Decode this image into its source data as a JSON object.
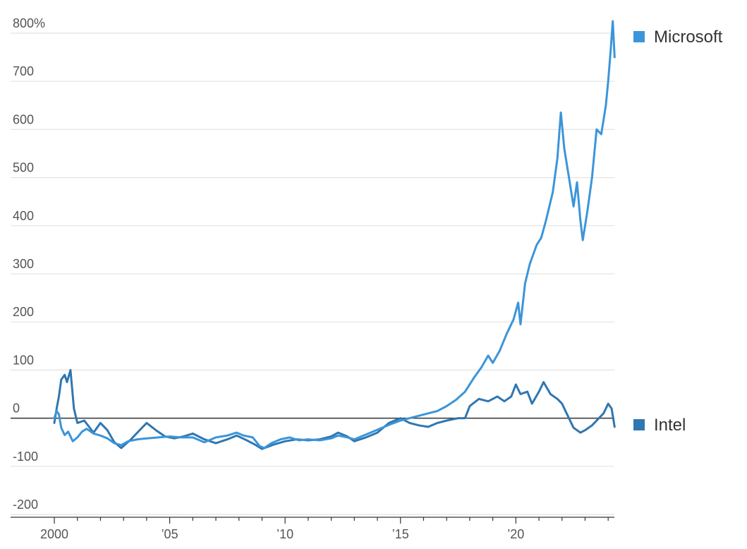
{
  "chart_data": {
    "type": "line",
    "title": "",
    "xlabel": "",
    "ylabel": "",
    "y_unit": "%",
    "ylim": [
      -200,
      800
    ],
    "xlim": [
      2000,
      2024.3
    ],
    "y_ticks": [
      {
        "value": 800,
        "label": "800%"
      },
      {
        "value": 700,
        "label": "700"
      },
      {
        "value": 600,
        "label": "600"
      },
      {
        "value": 500,
        "label": "500"
      },
      {
        "value": 400,
        "label": "400"
      },
      {
        "value": 300,
        "label": "300"
      },
      {
        "value": 200,
        "label": "200"
      },
      {
        "value": 100,
        "label": "100"
      },
      {
        "value": 0,
        "label": "0"
      },
      {
        "value": -100,
        "label": "-100"
      },
      {
        "value": -200,
        "label": "-200"
      }
    ],
    "x_ticks": [
      {
        "value": 2000,
        "label": "2000"
      },
      {
        "value": 2005,
        "label": "’05"
      },
      {
        "value": 2010,
        "label": "’10"
      },
      {
        "value": 2015,
        "label": "’15"
      },
      {
        "value": 2020,
        "label": "’20"
      }
    ],
    "grid": true,
    "zero_line": true,
    "legend_placement": "right, at line ends",
    "series": [
      {
        "name": "Microsoft",
        "color": "#3b95d9",
        "points": [
          [
            2000.0,
            0
          ],
          [
            2000.1,
            15
          ],
          [
            2000.2,
            8
          ],
          [
            2000.3,
            -20
          ],
          [
            2000.45,
            -35
          ],
          [
            2000.6,
            -28
          ],
          [
            2000.8,
            -48
          ],
          [
            2001.0,
            -40
          ],
          [
            2001.2,
            -28
          ],
          [
            2001.4,
            -22
          ],
          [
            2001.7,
            -32
          ],
          [
            2002.0,
            -36
          ],
          [
            2002.3,
            -42
          ],
          [
            2002.6,
            -52
          ],
          [
            2002.9,
            -56
          ],
          [
            2003.2,
            -48
          ],
          [
            2003.6,
            -44
          ],
          [
            2004.0,
            -42
          ],
          [
            2004.5,
            -40
          ],
          [
            2005.0,
            -38
          ],
          [
            2005.5,
            -40
          ],
          [
            2006.0,
            -40
          ],
          [
            2006.5,
            -50
          ],
          [
            2007.0,
            -40
          ],
          [
            2007.5,
            -36
          ],
          [
            2007.9,
            -30
          ],
          [
            2008.2,
            -36
          ],
          [
            2008.6,
            -40
          ],
          [
            2008.9,
            -58
          ],
          [
            2009.1,
            -62
          ],
          [
            2009.4,
            -52
          ],
          [
            2009.8,
            -44
          ],
          [
            2010.2,
            -40
          ],
          [
            2010.6,
            -46
          ],
          [
            2011.0,
            -44
          ],
          [
            2011.5,
            -46
          ],
          [
            2012.0,
            -42
          ],
          [
            2012.3,
            -36
          ],
          [
            2012.7,
            -40
          ],
          [
            2013.0,
            -44
          ],
          [
            2013.4,
            -36
          ],
          [
            2013.8,
            -28
          ],
          [
            2014.2,
            -20
          ],
          [
            2014.6,
            -12
          ],
          [
            2015.0,
            -5
          ],
          [
            2015.4,
            0
          ],
          [
            2015.8,
            5
          ],
          [
            2016.2,
            10
          ],
          [
            2016.6,
            15
          ],
          [
            2017.0,
            25
          ],
          [
            2017.4,
            38
          ],
          [
            2017.8,
            55
          ],
          [
            2018.2,
            85
          ],
          [
            2018.5,
            105
          ],
          [
            2018.8,
            130
          ],
          [
            2019.0,
            115
          ],
          [
            2019.3,
            140
          ],
          [
            2019.6,
            175
          ],
          [
            2019.9,
            205
          ],
          [
            2020.1,
            240
          ],
          [
            2020.2,
            195
          ],
          [
            2020.4,
            280
          ],
          [
            2020.6,
            320
          ],
          [
            2020.9,
            360
          ],
          [
            2021.1,
            375
          ],
          [
            2021.3,
            410
          ],
          [
            2021.6,
            470
          ],
          [
            2021.8,
            540
          ],
          [
            2021.95,
            635
          ],
          [
            2022.1,
            560
          ],
          [
            2022.3,
            500
          ],
          [
            2022.5,
            440
          ],
          [
            2022.65,
            490
          ],
          [
            2022.8,
            410
          ],
          [
            2022.9,
            370
          ],
          [
            2023.1,
            430
          ],
          [
            2023.3,
            500
          ],
          [
            2023.5,
            600
          ],
          [
            2023.7,
            590
          ],
          [
            2023.9,
            650
          ],
          [
            2024.0,
            700
          ],
          [
            2024.1,
            760
          ],
          [
            2024.2,
            825
          ],
          [
            2024.28,
            750
          ]
        ]
      },
      {
        "name": "Intel",
        "color": "#2f77b1",
        "points": [
          [
            2000.0,
            -10
          ],
          [
            2000.1,
            20
          ],
          [
            2000.2,
            45
          ],
          [
            2000.3,
            80
          ],
          [
            2000.45,
            90
          ],
          [
            2000.55,
            75
          ],
          [
            2000.7,
            100
          ],
          [
            2000.85,
            20
          ],
          [
            2001.0,
            -10
          ],
          [
            2001.3,
            -5
          ],
          [
            2001.7,
            -30
          ],
          [
            2002.0,
            -10
          ],
          [
            2002.3,
            -25
          ],
          [
            2002.6,
            -50
          ],
          [
            2002.9,
            -62
          ],
          [
            2003.3,
            -45
          ],
          [
            2003.7,
            -25
          ],
          [
            2004.0,
            -10
          ],
          [
            2004.4,
            -25
          ],
          [
            2004.8,
            -38
          ],
          [
            2005.2,
            -42
          ],
          [
            2005.6,
            -38
          ],
          [
            2006.0,
            -32
          ],
          [
            2006.5,
            -44
          ],
          [
            2007.0,
            -52
          ],
          [
            2007.5,
            -44
          ],
          [
            2007.9,
            -36
          ],
          [
            2008.3,
            -45
          ],
          [
            2008.7,
            -55
          ],
          [
            2009.0,
            -64
          ],
          [
            2009.5,
            -55
          ],
          [
            2010.0,
            -48
          ],
          [
            2010.5,
            -44
          ],
          [
            2011.0,
            -46
          ],
          [
            2011.5,
            -44
          ],
          [
            2012.0,
            -38
          ],
          [
            2012.3,
            -30
          ],
          [
            2012.7,
            -38
          ],
          [
            2013.0,
            -48
          ],
          [
            2013.5,
            -40
          ],
          [
            2014.0,
            -30
          ],
          [
            2014.5,
            -10
          ],
          [
            2015.0,
            0
          ],
          [
            2015.4,
            -10
          ],
          [
            2015.8,
            -15
          ],
          [
            2016.2,
            -18
          ],
          [
            2016.6,
            -10
          ],
          [
            2017.0,
            -5
          ],
          [
            2017.5,
            0
          ],
          [
            2017.8,
            0
          ],
          [
            2018.0,
            25
          ],
          [
            2018.4,
            40
          ],
          [
            2018.8,
            35
          ],
          [
            2019.2,
            45
          ],
          [
            2019.5,
            35
          ],
          [
            2019.8,
            45
          ],
          [
            2020.0,
            70
          ],
          [
            2020.2,
            50
          ],
          [
            2020.5,
            55
          ],
          [
            2020.7,
            30
          ],
          [
            2021.0,
            55
          ],
          [
            2021.2,
            75
          ],
          [
            2021.5,
            50
          ],
          [
            2021.8,
            40
          ],
          [
            2022.0,
            30
          ],
          [
            2022.2,
            10
          ],
          [
            2022.5,
            -20
          ],
          [
            2022.8,
            -30
          ],
          [
            2023.0,
            -25
          ],
          [
            2023.3,
            -15
          ],
          [
            2023.6,
            0
          ],
          [
            2023.8,
            10
          ],
          [
            2024.0,
            30
          ],
          [
            2024.15,
            20
          ],
          [
            2024.28,
            -18
          ]
        ]
      }
    ]
  }
}
